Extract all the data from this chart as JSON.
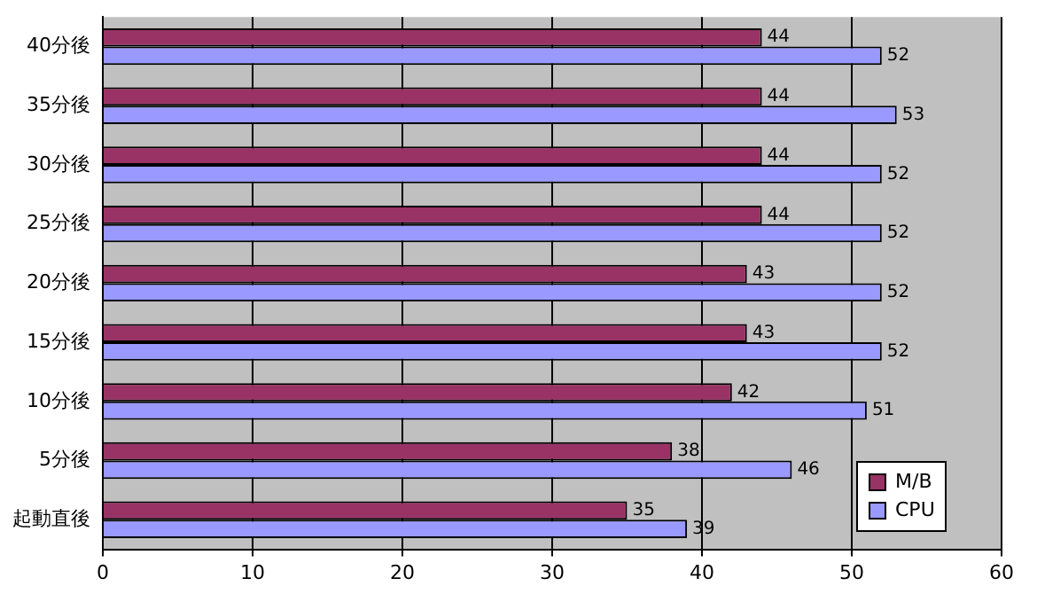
{
  "chart_data": {
    "type": "bar",
    "orientation": "horizontal",
    "categories": [
      "40分後",
      "35分後",
      "30分後",
      "25分後",
      "20分後",
      "15分後",
      "10分後",
      "5分後",
      "起動直後"
    ],
    "series": [
      {
        "name": "M/B",
        "color": "#993366",
        "values": [
          44,
          44,
          44,
          44,
          43,
          43,
          42,
          38,
          35
        ]
      },
      {
        "name": "CPU",
        "color": "#9999ff",
        "values": [
          52,
          53,
          52,
          52,
          52,
          52,
          51,
          46,
          39
        ]
      }
    ],
    "xlim": [
      0,
      60
    ],
    "xticks": [
      0,
      10,
      20,
      30,
      40,
      50,
      60
    ],
    "grid": "x",
    "data_labels": true,
    "legend": "bottom right"
  }
}
